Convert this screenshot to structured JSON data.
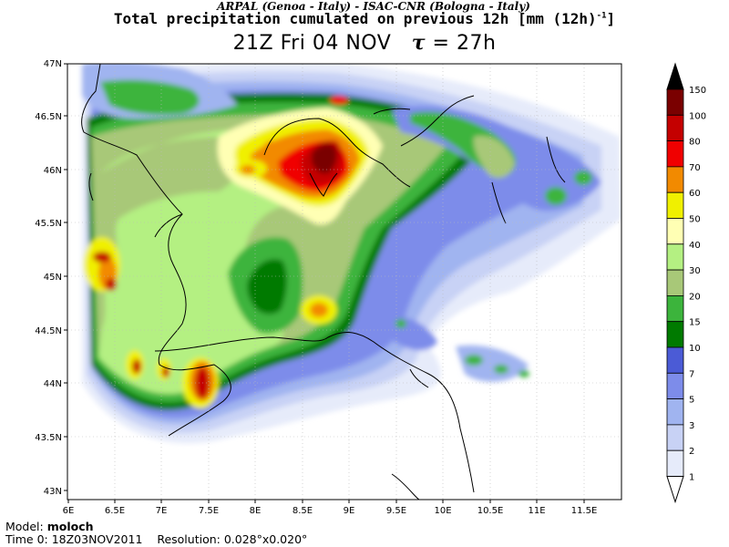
{
  "header": {
    "subtitle": "ARPAL (Genoa - Italy)   -   ISAC-CNR (Bologna - Italy)",
    "title": "Total precipitation cumulated on previous 12h [mm (12h)",
    "title_sup": "-1",
    "title_end": "]",
    "time_label": "21Z Fri 04 NOV",
    "tau_symbol": "τ",
    "tau_value": "= 27h"
  },
  "map": {
    "lat_ticks": [
      "47N",
      "46.5N",
      "46N",
      "45.5N",
      "45N",
      "44.5N",
      "44N",
      "43.5N",
      "43N"
    ],
    "lon_ticks": [
      "6E",
      "6.5E",
      "7E",
      "7.5E",
      "8E",
      "8.5E",
      "9E",
      "9.5E",
      "10E",
      "10.5E",
      "11E",
      "11.5E"
    ]
  },
  "legend": {
    "levels": [
      "150",
      "100",
      "80",
      "70",
      "60",
      "50",
      "40",
      "30",
      "20",
      "15",
      "10",
      "7",
      "5",
      "3",
      "2",
      "1"
    ],
    "colors": [
      "#000000",
      "#7a0000",
      "#c40000",
      "#f00000",
      "#f28a00",
      "#f0f000",
      "#ffffb4",
      "#b4f082",
      "#a8c878",
      "#3cb43c",
      "#007a00",
      "#4b5bd6",
      "#7d8cea",
      "#a0b4f0",
      "#c8d2f5",
      "#e6ebfa"
    ]
  },
  "footer": {
    "model_label": "Model:",
    "model_name": "moloch",
    "time0": "Time 0: 18Z03NOV2011",
    "resolution": "Resolution: 0.028°x0.020°"
  }
}
